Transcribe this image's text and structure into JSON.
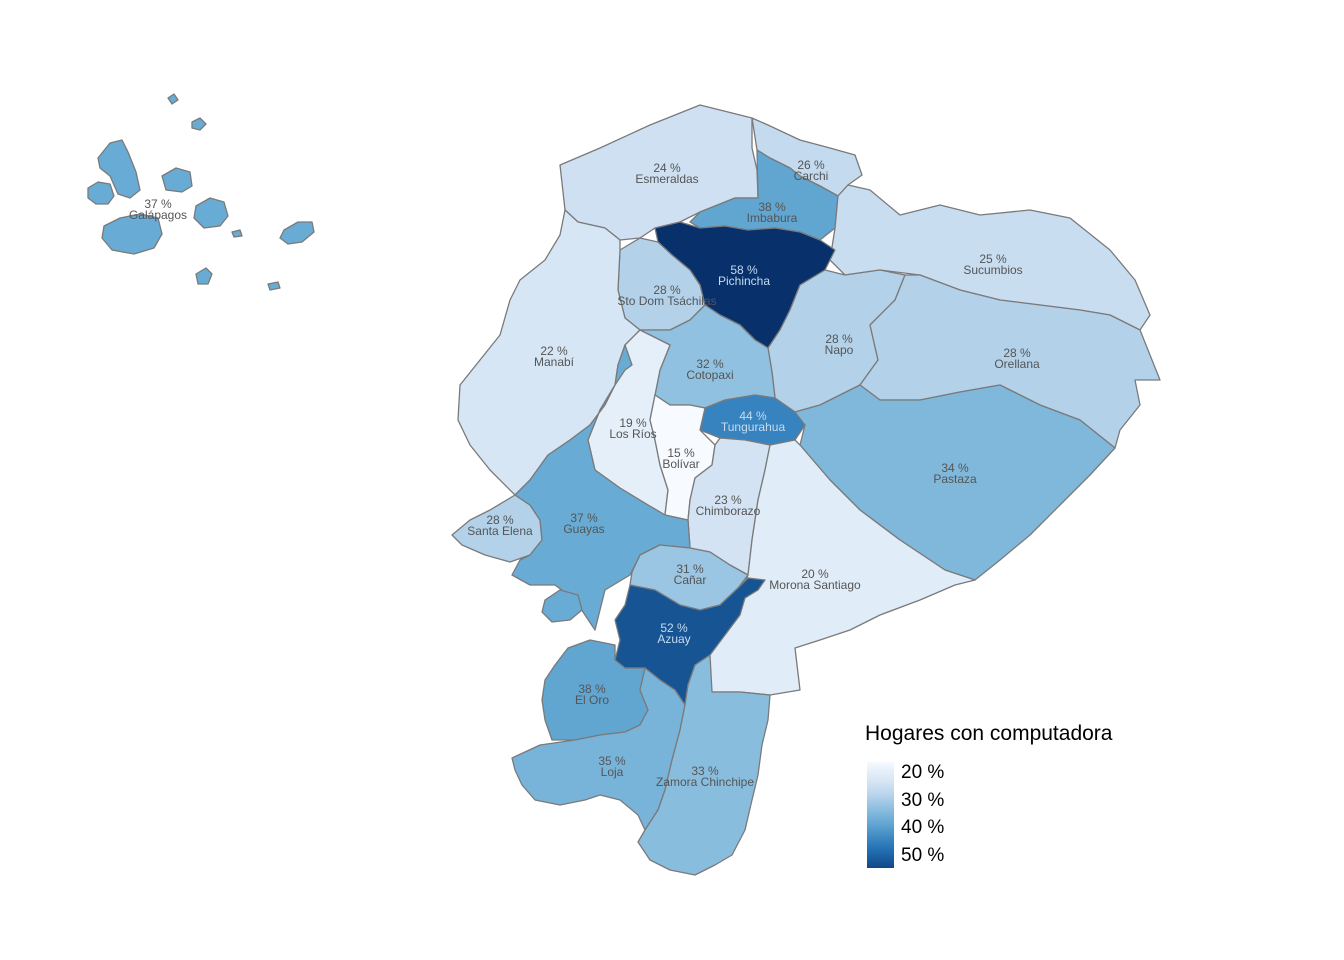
{
  "legend": {
    "title": "Hogares con computadora",
    "ticks": [
      "20 %",
      "30 %",
      "40 %",
      "50 %"
    ],
    "tick_values": [
      20,
      30,
      40,
      50
    ],
    "range": [
      15,
      58
    ],
    "colors": [
      "#f7fbff",
      "#c6dbef",
      "#6baed6",
      "#2171b5",
      "#08306b"
    ]
  },
  "provinces": [
    {
      "key": "galapagos",
      "name": "Galápagos",
      "value": 37,
      "pct": "37 %"
    },
    {
      "key": "esmeraldas",
      "name": "Esmeraldas",
      "value": 24,
      "pct": "24 %"
    },
    {
      "key": "carchi",
      "name": "Carchi",
      "value": 26,
      "pct": "26 %"
    },
    {
      "key": "imbabura",
      "name": "Imbabura",
      "value": 38,
      "pct": "38 %"
    },
    {
      "key": "sucumbios",
      "name": "Sucumbios",
      "value": 25,
      "pct": "25 %"
    },
    {
      "key": "pichincha",
      "name": "Pichincha",
      "value": 58,
      "pct": "58 %"
    },
    {
      "key": "sto-dom",
      "name": "Sto Dom Tsáchilas",
      "value": 28,
      "pct": "28 %"
    },
    {
      "key": "napo",
      "name": "Napo",
      "value": 28,
      "pct": "28 %"
    },
    {
      "key": "orellana",
      "name": "Orellana",
      "value": 28,
      "pct": "28 %"
    },
    {
      "key": "manabi",
      "name": "Manabí",
      "value": 22,
      "pct": "22 %"
    },
    {
      "key": "cotopaxi",
      "name": "Cotopaxi",
      "value": 32,
      "pct": "32 %"
    },
    {
      "key": "los-rios",
      "name": "Los Ríos",
      "value": 19,
      "pct": "19 %"
    },
    {
      "key": "tungurahua",
      "name": "Tungurahua",
      "value": 44,
      "pct": "44 %"
    },
    {
      "key": "bolivar",
      "name": "Bolívar",
      "value": 15,
      "pct": "15 %"
    },
    {
      "key": "pastaza",
      "name": "Pastaza",
      "value": 34,
      "pct": "34 %"
    },
    {
      "key": "chimborazo",
      "name": "Chimborazo",
      "value": 23,
      "pct": "23 %"
    },
    {
      "key": "santa-elena",
      "name": "Santa Elena",
      "value": 28,
      "pct": "28 %"
    },
    {
      "key": "guayas",
      "name": "Guayas",
      "value": 37,
      "pct": "37 %"
    },
    {
      "key": "canar",
      "name": "Cañar",
      "value": 31,
      "pct": "31 %"
    },
    {
      "key": "morona",
      "name": "Morona Santiago",
      "value": 20,
      "pct": "20 %"
    },
    {
      "key": "azuay",
      "name": "Azuay",
      "value": 52,
      "pct": "52 %"
    },
    {
      "key": "el-oro",
      "name": "El Oro",
      "value": 38,
      "pct": "38 %"
    },
    {
      "key": "loja",
      "name": "Loja",
      "value": 35,
      "pct": "35 %"
    },
    {
      "key": "zamora",
      "name": "Zamora Chinchipe",
      "value": 33,
      "pct": "33 %"
    }
  ]
}
